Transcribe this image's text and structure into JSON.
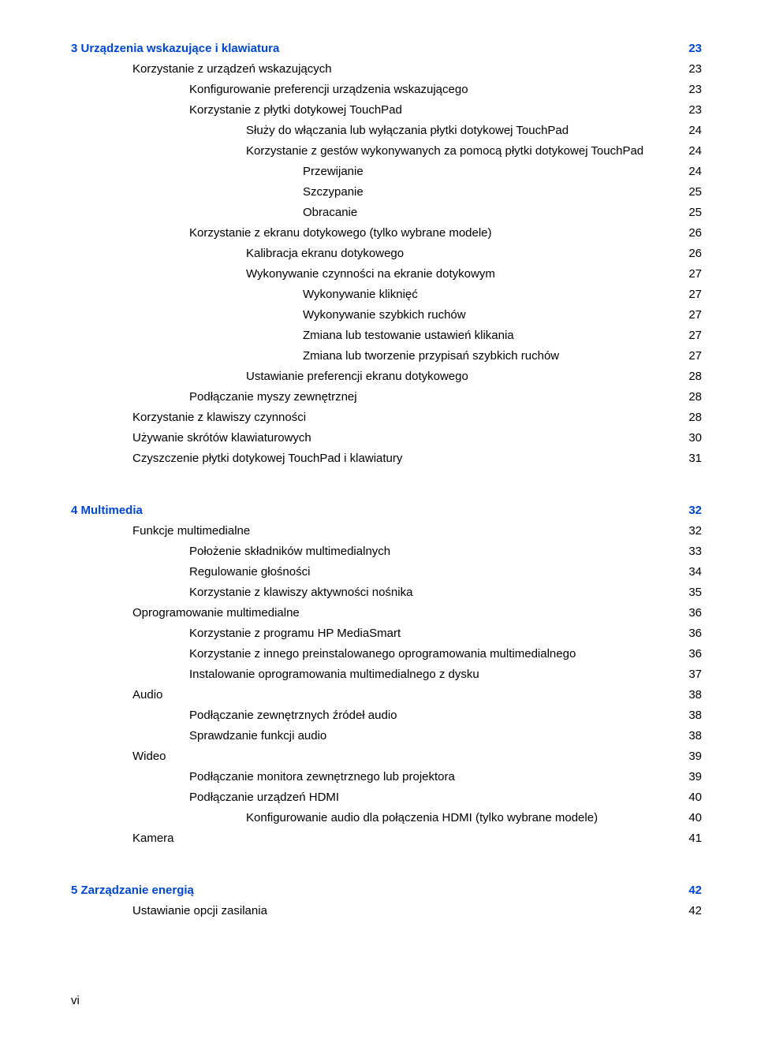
{
  "colors": {
    "chapter_link": "#0046d5",
    "text": "#000000",
    "background": "#ffffff"
  },
  "typography": {
    "font_family": "Arial",
    "body_size_pt": 11,
    "chapter_weight": "bold"
  },
  "page_footer": "vi",
  "sections": [
    {
      "chapter": {
        "label": "3  Urządzenia wskazujące i klawiatura",
        "page": "23"
      },
      "entries": [
        {
          "level": 1,
          "label": "Korzystanie z urządzeń wskazujących",
          "page": "23"
        },
        {
          "level": 2,
          "label": "Konfigurowanie preferencji urządzenia wskazującego",
          "page": "23"
        },
        {
          "level": 2,
          "label": "Korzystanie z płytki dotykowej TouchPad",
          "page": "23"
        },
        {
          "level": 3,
          "label": "Służy do włączania lub wyłączania płytki dotykowej TouchPad",
          "page": "24"
        },
        {
          "level": 3,
          "label": "Korzystanie z gestów wykonywanych za pomocą płytki dotykowej TouchPad",
          "page": "24"
        },
        {
          "level": 4,
          "label": "Przewijanie",
          "page": "24"
        },
        {
          "level": 4,
          "label": "Szczypanie",
          "page": "25"
        },
        {
          "level": 4,
          "label": "Obracanie",
          "page": "25"
        },
        {
          "level": 2,
          "label": "Korzystanie z ekranu dotykowego (tylko wybrane modele)",
          "page": "26"
        },
        {
          "level": 3,
          "label": "Kalibracja ekranu dotykowego",
          "page": "26"
        },
        {
          "level": 3,
          "label": "Wykonywanie czynności na ekranie dotykowym",
          "page": "27"
        },
        {
          "level": 4,
          "label": "Wykonywanie kliknięć",
          "page": "27"
        },
        {
          "level": 4,
          "label": "Wykonywanie szybkich ruchów",
          "page": "27"
        },
        {
          "level": 4,
          "label": "Zmiana lub testowanie ustawień klikania",
          "page": "27"
        },
        {
          "level": 4,
          "label": "Zmiana lub tworzenie przypisań szybkich ruchów",
          "page": "27"
        },
        {
          "level": 3,
          "label": "Ustawianie preferencji ekranu dotykowego",
          "page": "28"
        },
        {
          "level": 2,
          "label": "Podłączanie myszy zewnętrznej",
          "page": "28"
        },
        {
          "level": 1,
          "label": "Korzystanie z klawiszy czynności",
          "page": "28"
        },
        {
          "level": 1,
          "label": "Używanie skrótów klawiaturowych",
          "page": "30"
        },
        {
          "level": 1,
          "label": "Czyszczenie płytki dotykowej TouchPad i klawiatury",
          "page": "31"
        }
      ]
    },
    {
      "chapter": {
        "label": "4  Multimedia",
        "page": "32"
      },
      "entries": [
        {
          "level": 1,
          "label": "Funkcje multimedialne",
          "page": "32"
        },
        {
          "level": 2,
          "label": "Położenie składników multimedialnych",
          "page": "33"
        },
        {
          "level": 2,
          "label": "Regulowanie głośności",
          "page": "34"
        },
        {
          "level": 2,
          "label": "Korzystanie z klawiszy aktywności nośnika",
          "page": "35"
        },
        {
          "level": 1,
          "label": "Oprogramowanie multimedialne",
          "page": "36"
        },
        {
          "level": 2,
          "label": "Korzystanie z programu HP MediaSmart",
          "page": "36"
        },
        {
          "level": 2,
          "label": "Korzystanie z innego preinstalowanego oprogramowania multimedialnego",
          "page": "36"
        },
        {
          "level": 2,
          "label": "Instalowanie oprogramowania multimedialnego z dysku",
          "page": "37"
        },
        {
          "level": 1,
          "label": "Audio",
          "page": "38"
        },
        {
          "level": 2,
          "label": "Podłączanie zewnętrznych źródeł audio",
          "page": "38"
        },
        {
          "level": 2,
          "label": "Sprawdzanie funkcji audio",
          "page": "38"
        },
        {
          "level": 1,
          "label": "Wideo",
          "page": "39"
        },
        {
          "level": 2,
          "label": "Podłączanie monitora zewnętrznego lub projektora",
          "page": "39"
        },
        {
          "level": 2,
          "label": "Podłączanie urządzeń HDMI",
          "page": "40"
        },
        {
          "level": 3,
          "label": "Konfigurowanie audio dla połączenia HDMI (tylko wybrane modele)",
          "page": "40"
        },
        {
          "level": 1,
          "label": "Kamera",
          "page": "41"
        }
      ]
    },
    {
      "chapter": {
        "label": "5  Zarządzanie energią",
        "page": "42"
      },
      "entries": [
        {
          "level": 1,
          "label": "Ustawianie opcji zasilania",
          "page": "42"
        }
      ]
    }
  ]
}
